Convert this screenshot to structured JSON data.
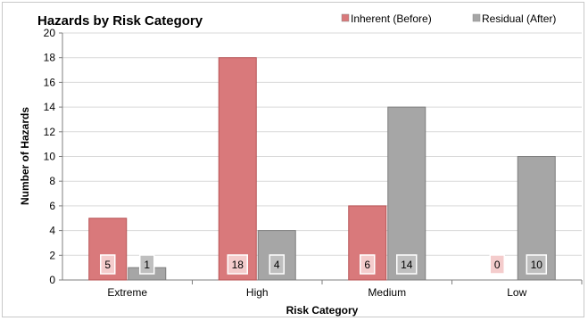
{
  "chart_data": {
    "type": "bar",
    "title": "Hazards by Risk Category",
    "xlabel": "Risk Category",
    "ylabel": "Number of Hazards",
    "categories": [
      "Extreme",
      "High",
      "Medium",
      "Low"
    ],
    "series": [
      {
        "name": "Inherent (Before)",
        "values": [
          5,
          18,
          6,
          0
        ],
        "color": "#d9797b",
        "label_bg": "#f4cccc",
        "label_text": "#ffffff"
      },
      {
        "name": "Residual (After)",
        "values": [
          1,
          4,
          14,
          10
        ],
        "color": "#a6a6a6",
        "label_bg": "#bfbfbf",
        "label_text": "#ffffff"
      }
    ],
    "ylim": [
      0,
      20
    ],
    "yticks": [
      0,
      2,
      4,
      6,
      8,
      10,
      12,
      14,
      16,
      18,
      20
    ],
    "grid": true,
    "legend_position": "top-right"
  }
}
